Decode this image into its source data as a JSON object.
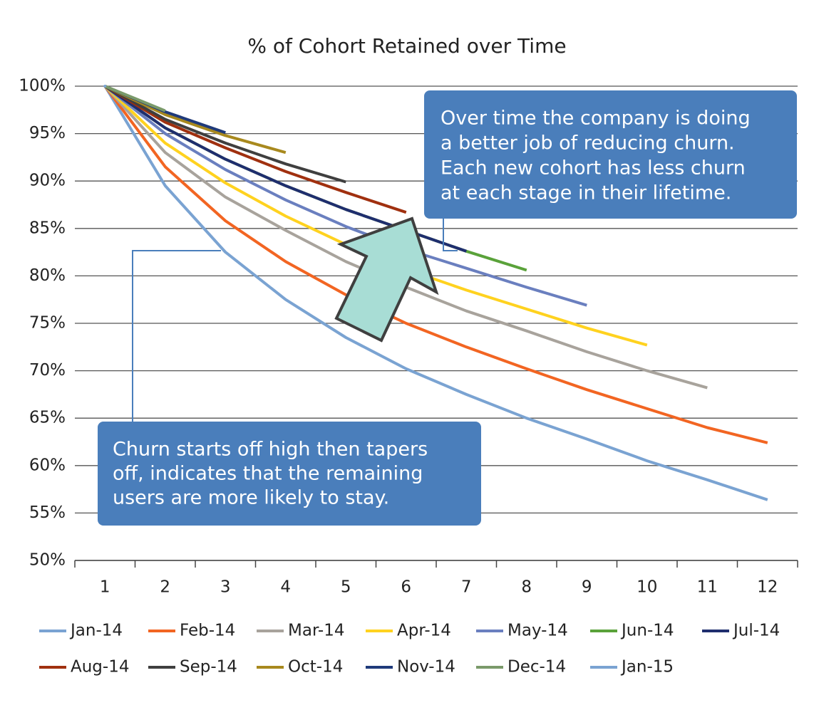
{
  "chart_data": {
    "type": "line",
    "title": "% of Cohort Retained over Time",
    "categories": [
      "1",
      "2",
      "3",
      "4",
      "5",
      "6",
      "7",
      "8",
      "9",
      "10",
      "11",
      "12"
    ],
    "ylim": [
      50,
      100
    ],
    "yticks": [
      {
        "value": 50,
        "label": "50%"
      },
      {
        "value": 55,
        "label": "55%"
      },
      {
        "value": 60,
        "label": "60%"
      },
      {
        "value": 65,
        "label": "65%"
      },
      {
        "value": 70,
        "label": "70%"
      },
      {
        "value": 75,
        "label": "75%"
      },
      {
        "value": 80,
        "label": "80%"
      },
      {
        "value": 85,
        "label": "85%"
      },
      {
        "value": 90,
        "label": "90%"
      },
      {
        "value": 95,
        "label": "95%"
      },
      {
        "value": 100,
        "label": "100%"
      }
    ],
    "grid": true,
    "series": [
      {
        "name": "Jan-14",
        "color": "#7aa3d2",
        "values": [
          100,
          89.5,
          82.5,
          77.5,
          73.5,
          70.2,
          67.5,
          65,
          62.8,
          60.5,
          58.5,
          56.4
        ]
      },
      {
        "name": "Feb-14",
        "color": "#f26522",
        "values": [
          100,
          91.5,
          85.8,
          81.5,
          78,
          75,
          72.5,
          70.2,
          68,
          66,
          64,
          62.4
        ]
      },
      {
        "name": "Mar-14",
        "color": "#a8a39c",
        "values": [
          100,
          93,
          88.3,
          84.8,
          81.5,
          78.8,
          76.3,
          74.2,
          72,
          70,
          68.2,
          null
        ]
      },
      {
        "name": "Apr-14",
        "color": "#ffd21f",
        "values": [
          100,
          94,
          89.8,
          86.3,
          83.3,
          80.7,
          78.5,
          76.5,
          74.5,
          72.7,
          null,
          null
        ]
      },
      {
        "name": "May-14",
        "color": "#6a7fbf",
        "values": [
          100,
          95,
          91.2,
          88,
          85.2,
          82.8,
          80.8,
          78.8,
          76.9,
          null,
          null,
          null
        ]
      },
      {
        "name": "Jun-14",
        "color": "#5aa23a",
        "values": [
          100,
          95.6,
          92.3,
          89.5,
          87,
          84.8,
          82.6,
          80.6,
          null,
          null,
          null,
          null
        ]
      },
      {
        "name": "Jul-14",
        "color": "#1f2e6e",
        "values": [
          100,
          95.6,
          92.3,
          89.5,
          87,
          84.8,
          82.6,
          null,
          null,
          null,
          null,
          null
        ]
      },
      {
        "name": "Aug-14",
        "color": "#a0300f",
        "values": [
          100,
          96.2,
          93.5,
          91,
          88.8,
          86.7,
          null,
          null,
          null,
          null,
          null,
          null
        ]
      },
      {
        "name": "Sep-14",
        "color": "#3f3f3f",
        "values": [
          100,
          96.5,
          94,
          91.8,
          89.9,
          null,
          null,
          null,
          null,
          null,
          null,
          null
        ]
      },
      {
        "name": "Oct-14",
        "color": "#a8891e",
        "values": [
          100,
          97,
          94.8,
          93,
          null,
          null,
          null,
          null,
          null,
          null,
          null,
          null
        ]
      },
      {
        "name": "Nov-14",
        "color": "#1f3a7a",
        "values": [
          100,
          97.3,
          95.1,
          null,
          null,
          null,
          null,
          null,
          null,
          null,
          null,
          null
        ]
      },
      {
        "name": "Dec-14",
        "color": "#7a9a6a",
        "values": [
          100,
          97.4,
          null,
          null,
          null,
          null,
          null,
          null,
          null,
          null,
          null,
          null
        ]
      },
      {
        "name": "Jan-15",
        "color": "#7aa3d2",
        "values": [
          100,
          null,
          null,
          null,
          null,
          null,
          null,
          null,
          null,
          null,
          null,
          null
        ]
      }
    ],
    "annotations": [
      {
        "lines": [
          "Over time the company is doing",
          "a better job of reducing churn.",
          "Each new cohort has less churn",
          "at each stage in their lifetime."
        ]
      },
      {
        "lines": [
          "Churn starts off high then tapers",
          "off, indicates that the remaining",
          "users are more likely to stay."
        ]
      }
    ]
  }
}
